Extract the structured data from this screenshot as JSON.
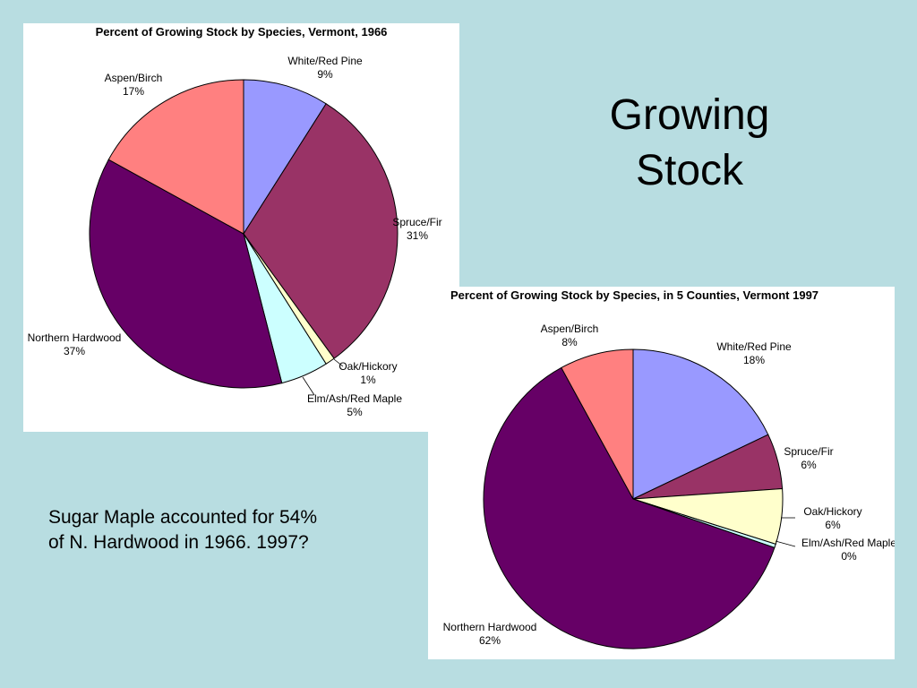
{
  "slide": {
    "title_line1": "Growing",
    "title_line2": "Stock",
    "note_line1": "Sugar Maple accounted for 54%",
    "note_line2": "of N. Hardwood in 1966.  1997?"
  },
  "colors": {
    "white_red_pine": "#9999ff",
    "spruce_fir": "#993366",
    "oak_hickory": "#ffffcc",
    "elm_ash_red_maple": "#ccffff",
    "northern_hardwood": "#660066",
    "aspen_birch": "#ff8080",
    "background": "#b8dde1"
  },
  "chart_data": [
    {
      "type": "pie",
      "title": "Percent of Growing Stock by Species, Vermont, 1966",
      "slices": [
        {
          "label": "White/Red Pine",
          "pct_label": "9%",
          "value": 9
        },
        {
          "label": "Spruce/Fir",
          "pct_label": "31%",
          "value": 31
        },
        {
          "label": "Oak/Hickory",
          "pct_label": "1%",
          "value": 1
        },
        {
          "label": "Elm/Ash/Red Maple",
          "pct_label": "5%",
          "value": 5
        },
        {
          "label": "Northern Hardwood",
          "pct_label": "37%",
          "value": 37
        },
        {
          "label": "Aspen/Birch",
          "pct_label": "17%",
          "value": 17
        }
      ]
    },
    {
      "type": "pie",
      "title": "Percent of Growing Stock by Species, in 5 Counties, Vermont 1997",
      "slices": [
        {
          "label": "White/Red Pine",
          "pct_label": "18%",
          "value": 18
        },
        {
          "label": "Spruce/Fir",
          "pct_label": "6%",
          "value": 6
        },
        {
          "label": "Oak/Hickory",
          "pct_label": "6%",
          "value": 6
        },
        {
          "label": "Elm/Ash/Red Maple",
          "pct_label": "0%",
          "value": 0.4
        },
        {
          "label": "Northern Hardwood",
          "pct_label": "62%",
          "value": 62
        },
        {
          "label": "Aspen/Birch",
          "pct_label": "8%",
          "value": 8
        }
      ]
    }
  ]
}
